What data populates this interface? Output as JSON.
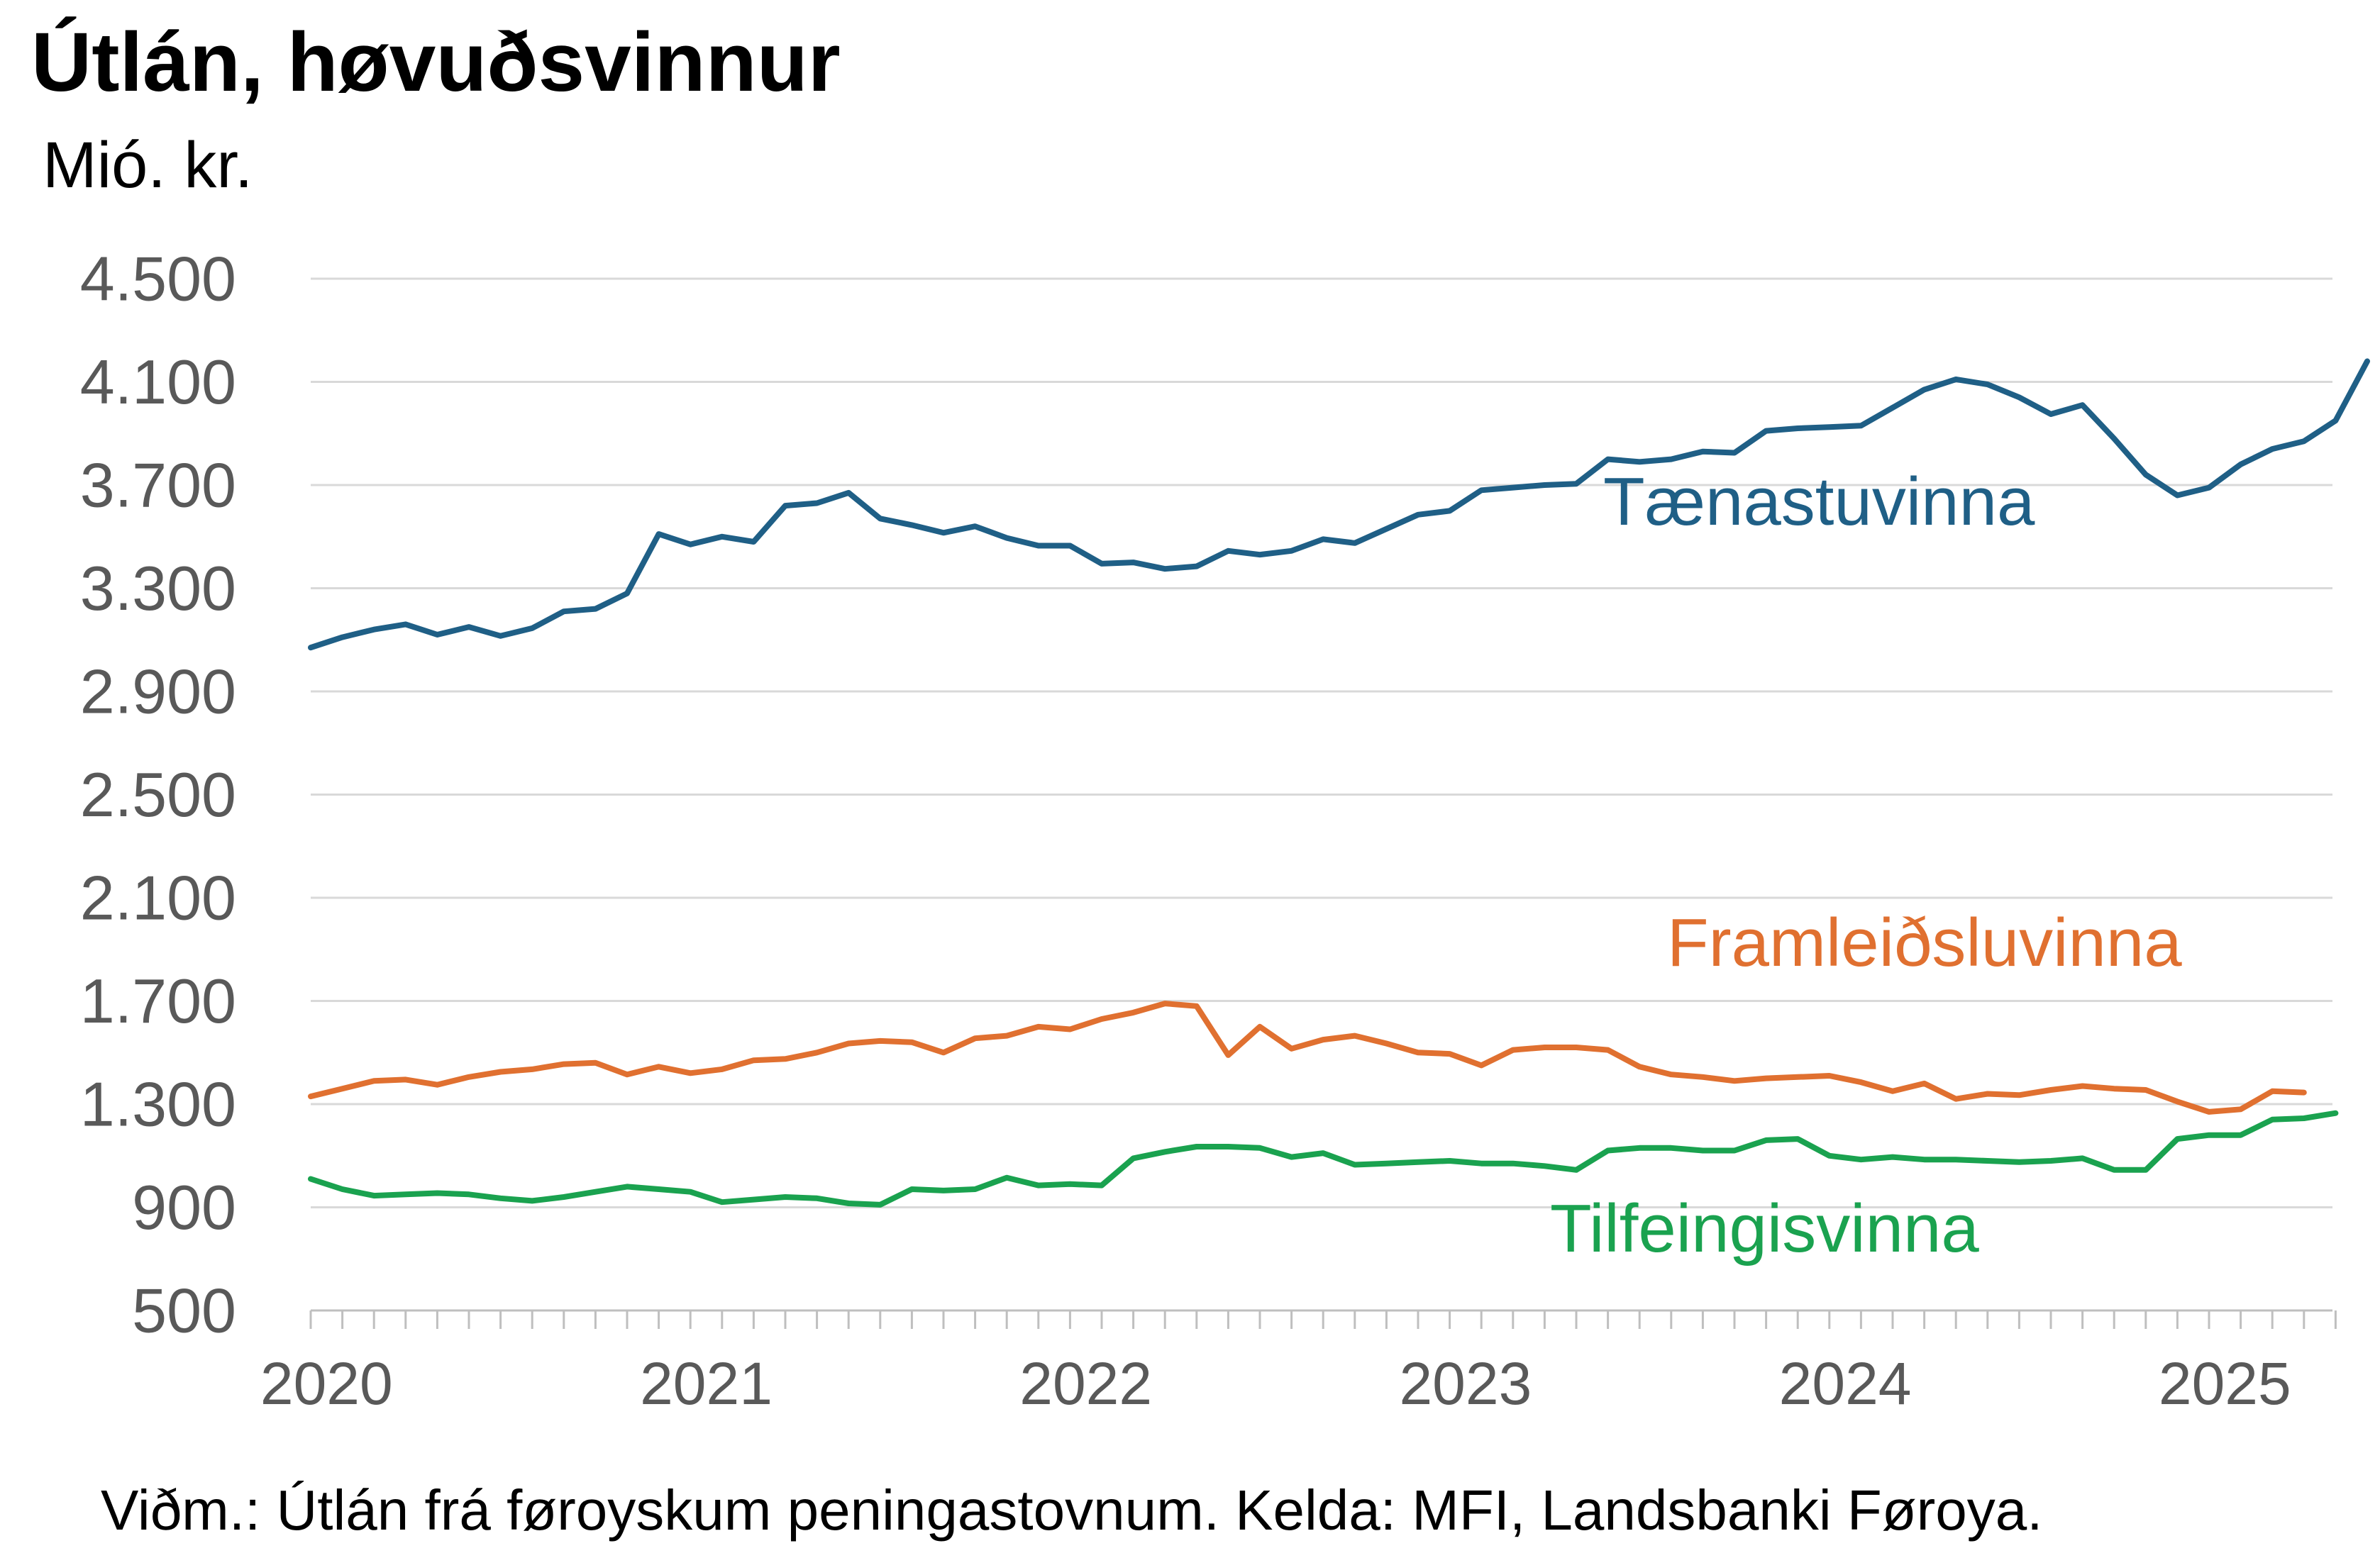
{
  "title": "Útlán, høvuðsvinnur",
  "unit": "Mió. kr.",
  "source": "Viðm.: Útlán frá føroyskum peningastovnum. Kelda: MFI, Landsbanki Føroya.",
  "chart_data": {
    "type": "line",
    "title": "Útlán, høvuðsvinnur",
    "ylabel": "Mió. kr.",
    "xlabel": "",
    "ylim": [
      500,
      4500
    ],
    "yticks": [
      500,
      900,
      1300,
      1700,
      2100,
      2500,
      2900,
      3300,
      3700,
      4100,
      4500
    ],
    "ytick_labels": [
      "500",
      "900",
      "1.300",
      "1.700",
      "2.100",
      "2.500",
      "2.900",
      "3.300",
      "3.700",
      "4.100",
      "4.500"
    ],
    "xtick_labels": [
      "2020",
      "2021",
      "2022",
      "2023",
      "2024",
      "2025"
    ],
    "x_start": "2020-01",
    "x_frequency": "monthly",
    "grid": true,
    "legend": "inline labels",
    "series": [
      {
        "name": "Tænastuvinna",
        "color": "#1f5f86",
        "values": [
          3070,
          3110,
          3140,
          3160,
          3120,
          3150,
          3115,
          3145,
          3210,
          3220,
          3280,
          3510,
          3470,
          3500,
          3480,
          3620,
          3630,
          3670,
          3570,
          3545,
          3515,
          3540,
          3495,
          3465,
          3465,
          3395,
          3400,
          3375,
          3385,
          3445,
          3430,
          3445,
          3490,
          3475,
          3530,
          3585,
          3600,
          3680,
          3690,
          3700,
          3705,
          3800,
          3790,
          3800,
          3830,
          3825,
          3910,
          3920,
          3925,
          3930,
          4000,
          4070,
          4110,
          4090,
          4040,
          3975,
          4010,
          3880,
          3740,
          3660,
          3690,
          3780,
          3840,
          3870,
          3950,
          4180
        ]
      },
      {
        "name": "Framleiðsluvinna",
        "color": "#e07030",
        "values": [
          1330,
          1360,
          1390,
          1395,
          1375,
          1405,
          1425,
          1435,
          1455,
          1460,
          1415,
          1445,
          1420,
          1435,
          1470,
          1475,
          1500,
          1535,
          1545,
          1540,
          1500,
          1555,
          1565,
          1600,
          1590,
          1630,
          1655,
          1690,
          1680,
          1490,
          1600,
          1515,
          1550,
          1565,
          1535,
          1500,
          1495,
          1450,
          1510,
          1520,
          1520,
          1510,
          1445,
          1415,
          1405,
          1390,
          1400,
          1405,
          1410,
          1385,
          1350,
          1380,
          1320,
          1340,
          1335,
          1355,
          1370,
          1360,
          1355,
          1310,
          1270,
          1280,
          1350,
          1345
        ]
      },
      {
        "name": "Tilfeingisvinna",
        "color": "#1aa24f",
        "values": [
          1010,
          970,
          945,
          950,
          955,
          950,
          935,
          925,
          940,
          960,
          980,
          970,
          960,
          920,
          930,
          940,
          935,
          915,
          910,
          970,
          965,
          970,
          1015,
          985,
          990,
          985,
          1090,
          1115,
          1135,
          1135,
          1130,
          1095,
          1110,
          1065,
          1070,
          1075,
          1080,
          1070,
          1070,
          1060,
          1045,
          1120,
          1130,
          1130,
          1120,
          1120,
          1160,
          1165,
          1100,
          1085,
          1095,
          1085,
          1085,
          1080,
          1075,
          1080,
          1090,
          1045,
          1045,
          1165,
          1180,
          1180,
          1240,
          1245,
          1265
        ]
      }
    ]
  }
}
